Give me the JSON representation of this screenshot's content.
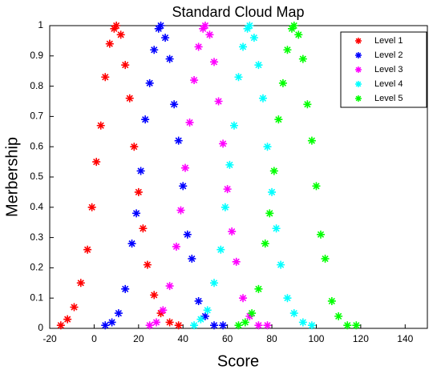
{
  "chart_data": {
    "type": "scatter",
    "title": "Standard Cloud Map",
    "x_label": "Score",
    "y_label": "Merbership",
    "xlim": [
      -20,
      150
    ],
    "xticks": [
      -20,
      0,
      20,
      40,
      60,
      80,
      100,
      120,
      140
    ],
    "ylim": [
      0,
      1
    ],
    "yticks": [
      0,
      0.1,
      0.2,
      0.3,
      0.4,
      0.5,
      0.6,
      0.7,
      0.8,
      0.9,
      1
    ],
    "legend_position": "upper right",
    "series": [
      {
        "name": "Level 1",
        "color": "#ff0000",
        "x": [
          -15,
          -12,
          -9,
          -6,
          -3,
          -1,
          1,
          3,
          5,
          7,
          9,
          10,
          12,
          14,
          16,
          18,
          20,
          22,
          24,
          27,
          30,
          34,
          38
        ],
        "values": [
          0.01,
          0.03,
          0.07,
          0.15,
          0.26,
          0.4,
          0.55,
          0.67,
          0.83,
          0.94,
          0.99,
          1,
          0.97,
          0.87,
          0.76,
          0.6,
          0.45,
          0.33,
          0.21,
          0.11,
          0.05,
          0.02,
          0.01
        ]
      },
      {
        "name": "Level 2",
        "color": "#0000ff",
        "x": [
          5,
          8,
          11,
          14,
          17,
          19,
          21,
          23,
          25,
          27,
          29,
          30,
          32,
          34,
          36,
          38,
          40,
          42,
          44,
          47,
          50,
          54,
          58
        ],
        "values": [
          0.01,
          0.02,
          0.05,
          0.13,
          0.28,
          0.38,
          0.52,
          0.69,
          0.81,
          0.92,
          0.99,
          1,
          0.96,
          0.89,
          0.74,
          0.62,
          0.47,
          0.31,
          0.23,
          0.09,
          0.04,
          0.01,
          0.01
        ]
      },
      {
        "name": "Level 3",
        "color": "#ff00ff",
        "x": [
          25,
          28,
          31,
          34,
          37,
          39,
          41,
          43,
          45,
          47,
          49,
          50,
          52,
          54,
          56,
          58,
          60,
          62,
          64,
          67,
          70,
          74,
          78
        ],
        "values": [
          0.01,
          0.02,
          0.06,
          0.14,
          0.27,
          0.39,
          0.53,
          0.68,
          0.82,
          0.93,
          0.99,
          1,
          0.97,
          0.88,
          0.75,
          0.61,
          0.46,
          0.32,
          0.22,
          0.1,
          0.04,
          0.01,
          0.01
        ]
      },
      {
        "name": "Level 4",
        "color": "#00ffff",
        "x": [
          45,
          48,
          51,
          54,
          57,
          59,
          61,
          63,
          65,
          67,
          69,
          70,
          72,
          74,
          76,
          78,
          80,
          82,
          84,
          87,
          90,
          94,
          98
        ],
        "values": [
          0.01,
          0.03,
          0.06,
          0.15,
          0.26,
          0.4,
          0.54,
          0.67,
          0.83,
          0.93,
          0.99,
          1,
          0.96,
          0.87,
          0.76,
          0.6,
          0.45,
          0.33,
          0.21,
          0.1,
          0.05,
          0.02,
          0.01
        ]
      },
      {
        "name": "Level 5",
        "color": "#00ff00",
        "x": [
          65,
          68,
          71,
          74,
          77,
          79,
          81,
          83,
          85,
          87,
          89,
          90,
          92,
          94,
          96,
          98,
          100,
          102,
          104,
          107,
          110,
          114,
          118
        ],
        "values": [
          0.01,
          0.02,
          0.05,
          0.13,
          0.28,
          0.38,
          0.52,
          0.69,
          0.81,
          0.92,
          0.99,
          1,
          0.97,
          0.89,
          0.74,
          0.62,
          0.47,
          0.31,
          0.23,
          0.09,
          0.04,
          0.01,
          0.01
        ]
      }
    ]
  }
}
